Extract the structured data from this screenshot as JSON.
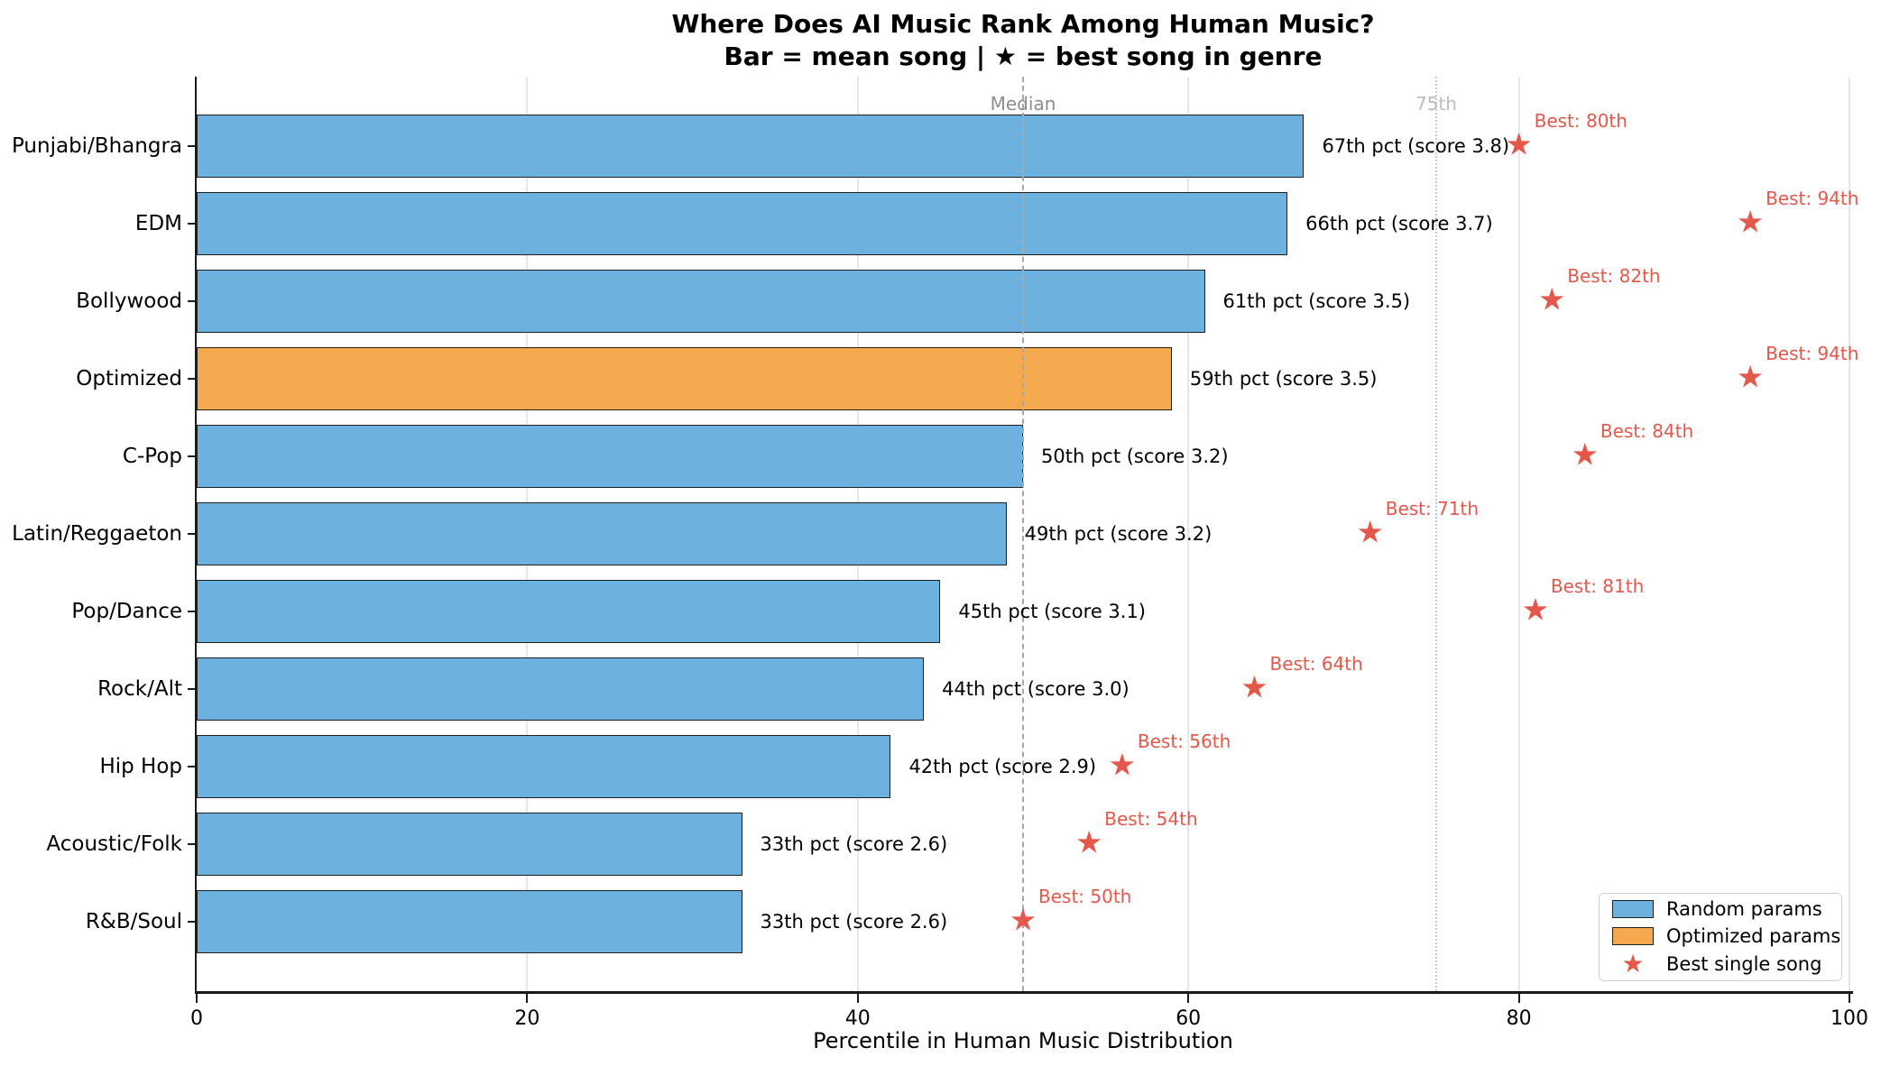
{
  "colors": {
    "random_bar": "#6db1e0",
    "optimized_bar": "#f5a94e",
    "bar_edge": "#1f1f1f",
    "star": "#e4584c",
    "star_label": "#e4584c",
    "gridline": "#e7e7e7",
    "median_line": "#a8a8a8",
    "p75_line": "#c8c8c8",
    "median_text": "#8c8c8c",
    "p75_text": "#bdbdbd",
    "axis": "#1a1a1a"
  },
  "chart_data": {
    "type": "bar",
    "orientation": "horizontal",
    "title": "Where Does AI Music Rank Among Human Music?",
    "subtitle": "Bar = mean song | ★ = best song in genre",
    "xlabel": "Percentile in Human Music Distribution",
    "xlim": [
      0,
      100
    ],
    "xticks": [
      0,
      20,
      40,
      60,
      80,
      100
    ],
    "gridlines": [
      20,
      40,
      60,
      80,
      100
    ],
    "grid": true,
    "legend_position": "lower right",
    "reference_lines": [
      {
        "value": 50,
        "label": "Median",
        "style": "dashed"
      },
      {
        "value": 75,
        "label": "75th",
        "style": "dotted"
      }
    ],
    "rows": [
      {
        "genre": "Punjabi/Bhangra",
        "mean_pct": 67,
        "mean_score": 3.8,
        "annotation": "67th pct (score 3.8)",
        "best_pct": 80,
        "best_label": "Best: 80th",
        "params": "random"
      },
      {
        "genre": "EDM",
        "mean_pct": 66,
        "mean_score": 3.7,
        "annotation": "66th pct (score 3.7)",
        "best_pct": 94,
        "best_label": "Best: 94th",
        "params": "random"
      },
      {
        "genre": "Bollywood",
        "mean_pct": 61,
        "mean_score": 3.5,
        "annotation": "61th pct (score 3.5)",
        "best_pct": 82,
        "best_label": "Best: 82th",
        "params": "random"
      },
      {
        "genre": "Optimized",
        "mean_pct": 59,
        "mean_score": 3.5,
        "annotation": "59th pct (score 3.5)",
        "best_pct": 94,
        "best_label": "Best: 94th",
        "params": "optimized"
      },
      {
        "genre": "C-Pop",
        "mean_pct": 50,
        "mean_score": 3.2,
        "annotation": "50th pct (score 3.2)",
        "best_pct": 84,
        "best_label": "Best: 84th",
        "params": "random"
      },
      {
        "genre": "Latin/Reggaeton",
        "mean_pct": 49,
        "mean_score": 3.2,
        "annotation": "49th pct (score 3.2)",
        "best_pct": 71,
        "best_label": "Best: 71th",
        "params": "random"
      },
      {
        "genre": "Pop/Dance",
        "mean_pct": 45,
        "mean_score": 3.1,
        "annotation": "45th pct (score 3.1)",
        "best_pct": 81,
        "best_label": "Best: 81th",
        "params": "random"
      },
      {
        "genre": "Rock/Alt",
        "mean_pct": 44,
        "mean_score": 3.0,
        "annotation": "44th pct (score 3.0)",
        "best_pct": 64,
        "best_label": "Best: 64th",
        "params": "random"
      },
      {
        "genre": "Hip Hop",
        "mean_pct": 42,
        "mean_score": 2.9,
        "annotation": "42th pct (score 2.9)",
        "best_pct": 56,
        "best_label": "Best: 56th",
        "params": "random"
      },
      {
        "genre": "Acoustic/Folk",
        "mean_pct": 33,
        "mean_score": 2.6,
        "annotation": "33th pct (score 2.6)",
        "best_pct": 54,
        "best_label": "Best: 54th",
        "params": "random"
      },
      {
        "genre": "R&B/Soul",
        "mean_pct": 33,
        "mean_score": 2.6,
        "annotation": "33th pct (score 2.6)",
        "best_pct": 50,
        "best_label": "Best: 50th",
        "params": "random"
      }
    ],
    "legend": [
      {
        "label": "Random params",
        "marker": "bar",
        "color": "#6db1e0"
      },
      {
        "label": "Optimized params",
        "marker": "bar",
        "color": "#f5a94e"
      },
      {
        "label": "Best single song",
        "marker": "star",
        "color": "#e4584c"
      }
    ],
    "star_glyph": "★"
  }
}
